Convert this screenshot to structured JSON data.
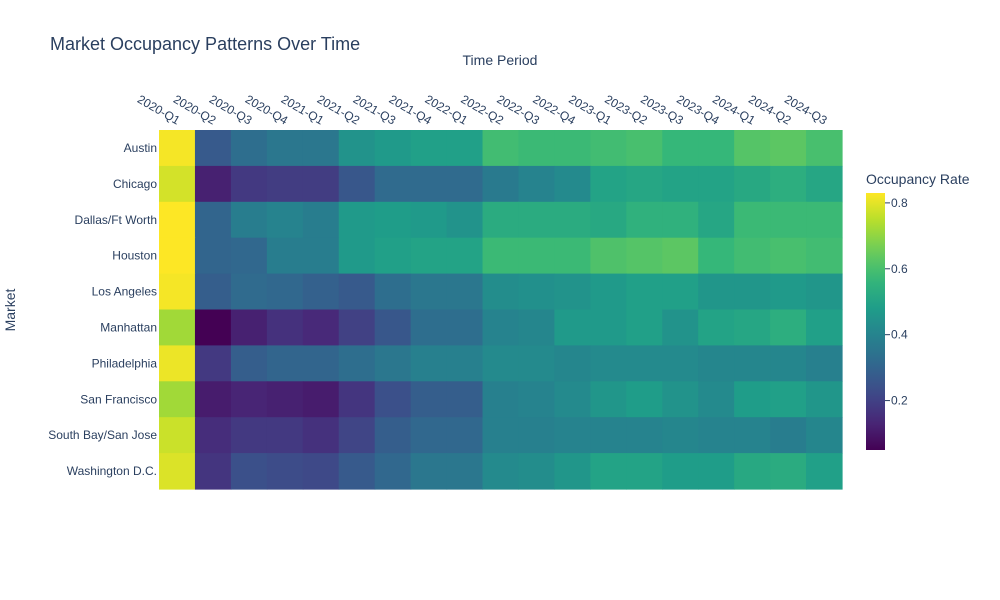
{
  "chart_data": {
    "type": "heatmap",
    "title": "Market Occupancy Patterns Over Time",
    "xlabel": "Time Period",
    "ylabel": "Market",
    "x": [
      "2020-Q1",
      "2020-Q2",
      "2020-Q3",
      "2020-Q4",
      "2021-Q1",
      "2021-Q2",
      "2021-Q3",
      "2021-Q4",
      "2022-Q1",
      "2022-Q2",
      "2022-Q3",
      "2022-Q4",
      "2023-Q1",
      "2023-Q2",
      "2023-Q3",
      "2023-Q4",
      "2024-Q1",
      "2024-Q2",
      "2024-Q3"
    ],
    "y": [
      "Austin",
      "Chicago",
      "Dallas/Ft Worth",
      "Houston",
      "Los Angeles",
      "Manhattan",
      "Philadelphia",
      "San Francisco",
      "South Bay/San Jose",
      "Washington D.C."
    ],
    "z": [
      [
        0.82,
        0.27,
        0.33,
        0.36,
        0.36,
        0.45,
        0.47,
        0.49,
        0.49,
        0.59,
        0.58,
        0.58,
        0.59,
        0.6,
        0.57,
        0.57,
        0.62,
        0.63,
        0.6
      ],
      [
        0.78,
        0.12,
        0.18,
        0.19,
        0.19,
        0.26,
        0.32,
        0.32,
        0.32,
        0.37,
        0.4,
        0.42,
        0.5,
        0.51,
        0.5,
        0.5,
        0.52,
        0.54,
        0.51
      ],
      [
        0.83,
        0.3,
        0.38,
        0.4,
        0.38,
        0.47,
        0.48,
        0.47,
        0.45,
        0.53,
        0.53,
        0.53,
        0.52,
        0.55,
        0.55,
        0.51,
        0.58,
        0.58,
        0.58
      ],
      [
        0.83,
        0.3,
        0.31,
        0.38,
        0.38,
        0.47,
        0.49,
        0.5,
        0.5,
        0.58,
        0.58,
        0.58,
        0.61,
        0.62,
        0.63,
        0.57,
        0.59,
        0.6,
        0.59
      ],
      [
        0.82,
        0.28,
        0.32,
        0.31,
        0.29,
        0.27,
        0.33,
        0.36,
        0.36,
        0.43,
        0.44,
        0.45,
        0.47,
        0.49,
        0.49,
        0.46,
        0.46,
        0.47,
        0.46
      ],
      [
        0.72,
        0.05,
        0.12,
        0.16,
        0.14,
        0.2,
        0.26,
        0.33,
        0.33,
        0.4,
        0.41,
        0.47,
        0.47,
        0.49,
        0.45,
        0.5,
        0.51,
        0.54,
        0.49
      ],
      [
        0.81,
        0.18,
        0.28,
        0.3,
        0.3,
        0.33,
        0.36,
        0.39,
        0.39,
        0.42,
        0.42,
        0.41,
        0.42,
        0.42,
        0.42,
        0.41,
        0.41,
        0.41,
        0.39
      ],
      [
        0.72,
        0.11,
        0.13,
        0.12,
        0.11,
        0.17,
        0.24,
        0.28,
        0.28,
        0.39,
        0.4,
        0.42,
        0.46,
        0.48,
        0.45,
        0.42,
        0.48,
        0.49,
        0.46
      ],
      [
        0.77,
        0.15,
        0.18,
        0.18,
        0.16,
        0.21,
        0.28,
        0.31,
        0.31,
        0.39,
        0.39,
        0.4,
        0.4,
        0.4,
        0.41,
        0.4,
        0.4,
        0.38,
        0.41
      ],
      [
        0.79,
        0.17,
        0.24,
        0.23,
        0.22,
        0.27,
        0.31,
        0.36,
        0.36,
        0.42,
        0.43,
        0.46,
        0.5,
        0.5,
        0.48,
        0.48,
        0.52,
        0.53,
        0.49
      ]
    ],
    "colorbar": {
      "title": "Occupancy Rate",
      "range": [
        0.05,
        0.83
      ],
      "tickvals": [
        0.2,
        0.4,
        0.6,
        0.8
      ],
      "ticklabels": [
        "0.2",
        "0.4",
        "0.6",
        "0.8"
      ]
    },
    "colorscale": "Viridis"
  }
}
